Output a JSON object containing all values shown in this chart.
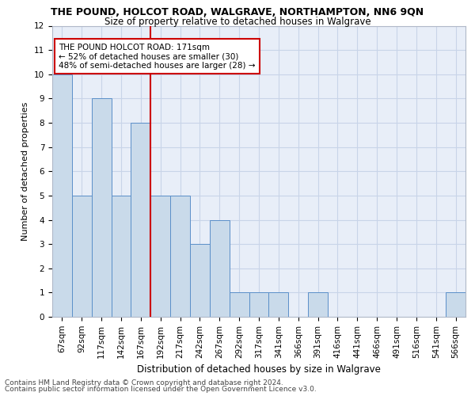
{
  "title": "THE POUND, HOLCOT ROAD, WALGRAVE, NORTHAMPTON, NN6 9QN",
  "subtitle": "Size of property relative to detached houses in Walgrave",
  "xlabel": "Distribution of detached houses by size in Walgrave",
  "ylabel": "Number of detached properties",
  "categories": [
    "67sqm",
    "92sqm",
    "117sqm",
    "142sqm",
    "167sqm",
    "192sqm",
    "217sqm",
    "242sqm",
    "267sqm",
    "292sqm",
    "317sqm",
    "341sqm",
    "366sqm",
    "391sqm",
    "416sqm",
    "441sqm",
    "466sqm",
    "491sqm",
    "516sqm",
    "541sqm",
    "566sqm"
  ],
  "values": [
    10,
    5,
    9,
    5,
    8,
    5,
    5,
    3,
    4,
    1,
    1,
    1,
    0,
    1,
    0,
    0,
    0,
    0,
    0,
    0,
    1
  ],
  "bar_color": "#c9daea",
  "bar_edgecolor": "#5b8fc9",
  "highlight_index": 4,
  "highlight_line_color": "#cc0000",
  "ylim": [
    0,
    12
  ],
  "yticks": [
    0,
    1,
    2,
    3,
    4,
    5,
    6,
    7,
    8,
    9,
    10,
    11,
    12
  ],
  "annotation_text": "THE POUND HOLCOT ROAD: 171sqm\n← 52% of detached houses are smaller (30)\n48% of semi-detached houses are larger (28) →",
  "annotation_box_facecolor": "#ffffff",
  "annotation_box_edgecolor": "#cc0000",
  "footer_line1": "Contains HM Land Registry data © Crown copyright and database right 2024.",
  "footer_line2": "Contains public sector information licensed under the Open Government Licence v3.0.",
  "grid_color": "#c8d4e8",
  "background_color": "#e8eef8",
  "title_fontsize": 9,
  "subtitle_fontsize": 8.5,
  "ylabel_fontsize": 8,
  "xlabel_fontsize": 8.5,
  "tick_fontsize": 7.5,
  "annot_fontsize": 7.5,
  "footer_fontsize": 6.5
}
